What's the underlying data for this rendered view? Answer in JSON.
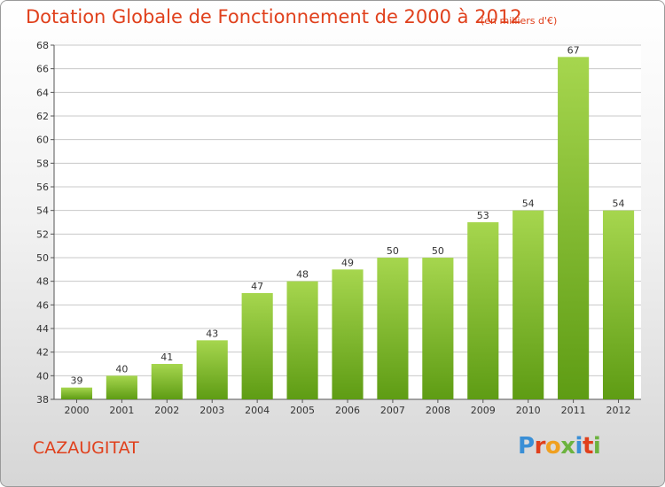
{
  "header": {
    "title": "Dotation Globale de Fonctionnement de 2000 à 2012",
    "subtitle": "(en milliers d'€)"
  },
  "footer": {
    "commune": "CAZAUGITAT",
    "logo_text": "Proxiti"
  },
  "colors": {
    "title": "#e0401c",
    "bar_top": "#a6d64e",
    "bar_bottom": "#5e9c14",
    "grid": "#c8c8c8",
    "logo": [
      "#3a8fd6",
      "#e0401c",
      "#f0a020",
      "#6cb33f",
      "#3a8fd6",
      "#e0401c",
      "#6cb33f"
    ]
  },
  "chart_data": {
    "type": "bar",
    "title": "Dotation Globale de Fonctionnement de 2000 à 2012",
    "subtitle": "(en milliers d'€)",
    "categories": [
      "2000",
      "2001",
      "2002",
      "2003",
      "2004",
      "2005",
      "2006",
      "2007",
      "2008",
      "2009",
      "2010",
      "2011",
      "2012"
    ],
    "values": [
      39,
      40,
      41,
      43,
      47,
      48,
      49,
      50,
      50,
      53,
      54,
      67,
      54
    ],
    "ylim": [
      38,
      68
    ],
    "yticks": [
      38,
      40,
      42,
      44,
      46,
      48,
      50,
      52,
      54,
      56,
      58,
      60,
      62,
      64,
      66,
      68
    ],
    "grid": true,
    "legend": "none"
  }
}
